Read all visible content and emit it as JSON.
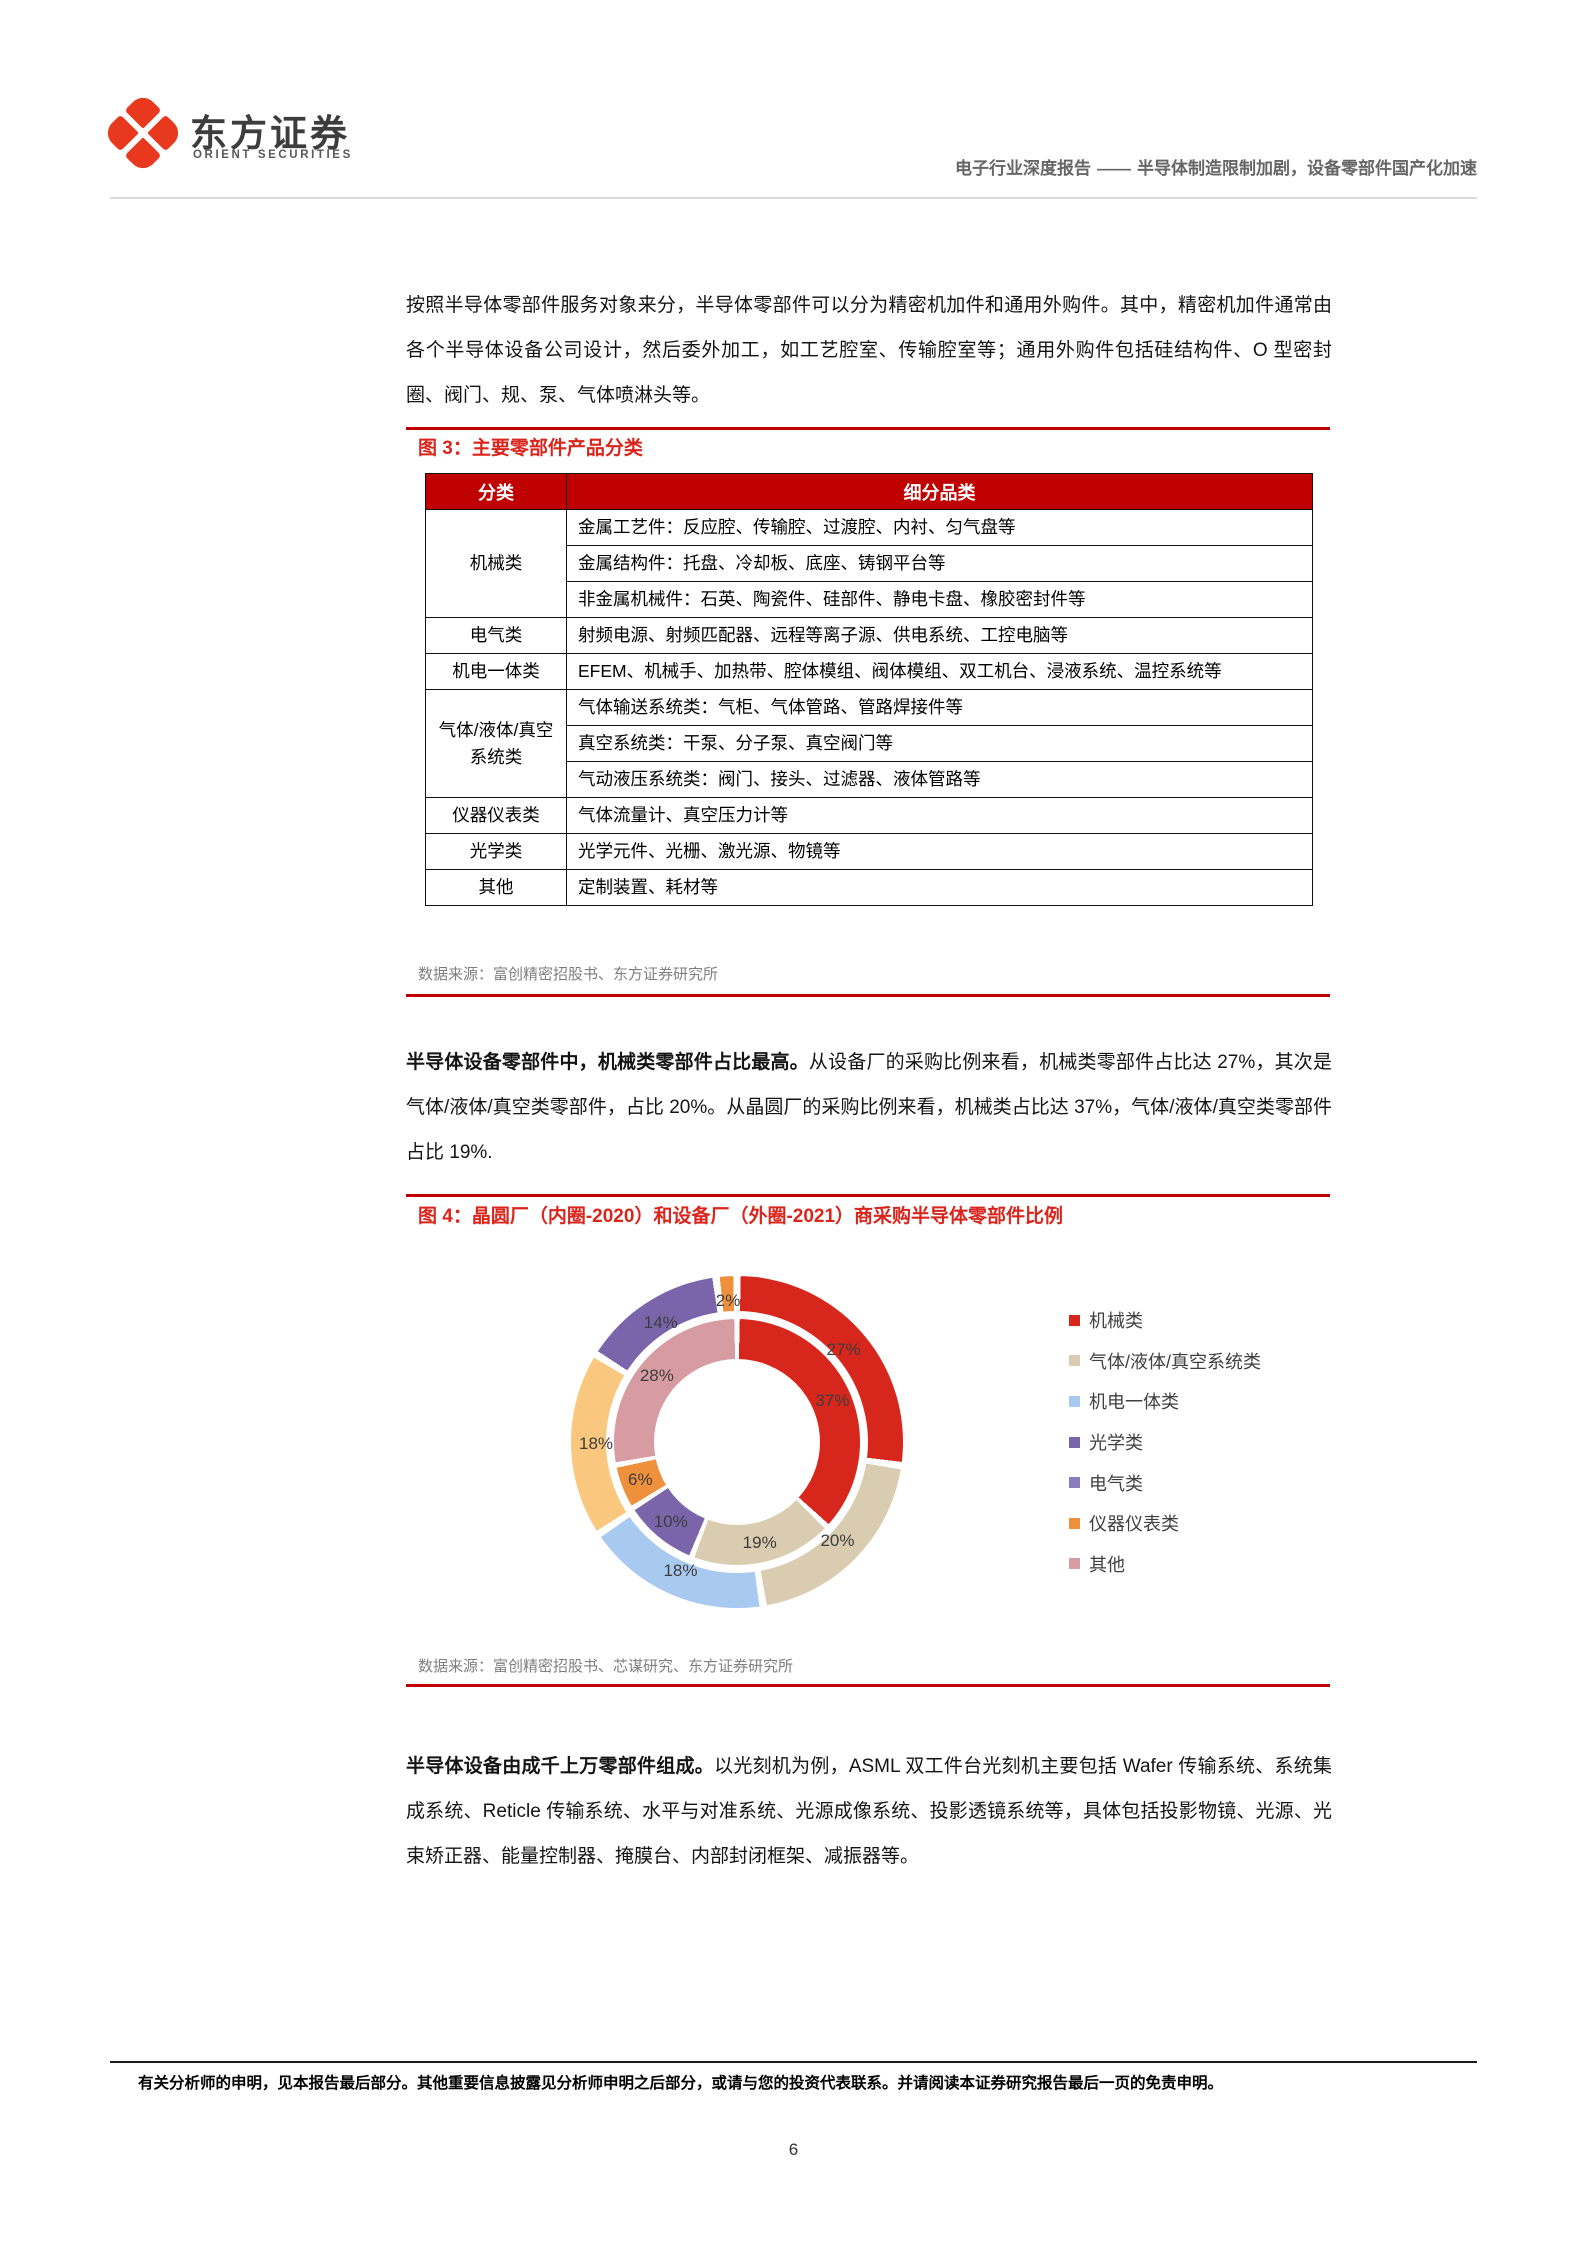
{
  "header": {
    "brand_cn": "东方证券",
    "brand_en": "ORIENT SECURITIES",
    "report_type": "电子行业深度报告",
    "dash": "——",
    "report_title": "半导体制造限制加剧，设备零部件国产化加速"
  },
  "paragraphs": {
    "p1": "按照半导体零部件服务对象来分，半导体零部件可以分为精密机加件和通用外购件。其中，精密机加件通常由各个半导体设备公司设计，然后委外加工，如工艺腔室、传输腔室等；通用外购件包括硅结构件、O 型密封圈、阀门、规、泵、气体喷淋头等。",
    "p2_bold": "半导体设备零部件中，机械类零部件占比最高。",
    "p2_rest": "从设备厂的采购比例来看，机械类零部件占比达 27%，其次是气体/液体/真空类零部件，占比 20%。从晶圆厂的采购比例来看，机械类占比达 37%，气体/液体/真空类零部件占比 19%.",
    "p3_bold": "半导体设备由成千上万零部件组成。",
    "p3_rest": "以光刻机为例，ASML 双工件台光刻机主要包括 Wafer 传输系统、系统集成系统、Reticle 传输系统、水平与对准系统、光源成像系统、投影透镜系统等，具体包括投影物镜、光源、光束矫正器、能量控制器、掩膜台、内部封闭框架、减振器等。"
  },
  "figure3": {
    "title": "图 3：主要零部件产品分类",
    "source": "数据来源：富创精密招股书、东方证券研究所",
    "table": {
      "headers": [
        "分类",
        "细分品类"
      ],
      "rows": [
        {
          "category": "机械类",
          "items": [
            "金属工艺件：反应腔、传输腔、过渡腔、内衬、匀气盘等",
            "金属结构件：托盘、冷却板、底座、铸钢平台等",
            "非金属机械件：石英、陶瓷件、硅部件、静电卡盘、橡胶密封件等"
          ]
        },
        {
          "category": "电气类",
          "items": [
            "射频电源、射频匹配器、远程等离子源、供电系统、工控电脑等"
          ]
        },
        {
          "category": "机电一体类",
          "items": [
            "EFEM、机械手、加热带、腔体模组、阀体模组、双工机台、浸液系统、温控系统等"
          ]
        },
        {
          "category": "气体/液体/真空系统类",
          "items": [
            "气体输送系统类：气柜、气体管路、管路焊接件等",
            "真空系统类：干泵、分子泵、真空阀门等",
            "气动液压系统类：阀门、接头、过滤器、液体管路等"
          ]
        },
        {
          "category": "仪器仪表类",
          "items": [
            "气体流量计、真空压力计等"
          ]
        },
        {
          "category": "光学类",
          "items": [
            "光学元件、光栅、激光源、物镜等"
          ]
        },
        {
          "category": "其他",
          "items": [
            "定制装置、耗材等"
          ]
        }
      ]
    }
  },
  "figure4": {
    "title": "图 4：晶圆厂（内圈-2020）和设备厂（外圈-2021）商采购半导体零部件比例",
    "source": "数据来源：富创精密招股书、芯谋研究、东方证券研究所"
  },
  "chart_data": {
    "type": "pie",
    "subtype": "double-ring-donut",
    "title": "晶圆厂（内圈-2020）和设备厂（外圈-2021）商采购半导体零部件比例",
    "legend_position": "right",
    "legend": [
      {
        "label": "机械类",
        "color": "#D7261C"
      },
      {
        "label": "气体/液体/真空系统类",
        "color": "#D9CCB1"
      },
      {
        "label": "机电一体类",
        "color": "#A8C9F0"
      },
      {
        "label": "光学类",
        "color": "#7B65AA"
      },
      {
        "label": "电气类",
        "color": "#8A7CBA"
      },
      {
        "label": "仪器仪表类",
        "color": "#EF913C"
      },
      {
        "label": "其他",
        "color": "#D79CA1"
      }
    ],
    "series": [
      {
        "name": "设备厂商采购比例（外圈-2021）",
        "ring": "outer",
        "slices": [
          {
            "label": "机械类",
            "value": 27,
            "display": "27%",
            "color": "#D7261C"
          },
          {
            "label": "气体/液体/真空系统类",
            "value": 20,
            "display": "20%",
            "color": "#D9CCB1"
          },
          {
            "label": "机电一体类",
            "value": 18,
            "display": "18%",
            "color": "#A8C9F0"
          },
          {
            "label": "光学类",
            "value": 18,
            "display": "18%",
            "color": "#F9C77D"
          },
          {
            "label": "电气类",
            "value": 14,
            "display": "14%",
            "color": "#7B65AA"
          },
          {
            "label": "仪器仪表类",
            "value": 2,
            "display": "2%",
            "color": "#EF913C"
          }
        ]
      },
      {
        "name": "晶圆厂商采购比例（内圈-2020）",
        "ring": "inner",
        "slices": [
          {
            "label": "机械类",
            "value": 37,
            "display": "37%",
            "color": "#D7261C"
          },
          {
            "label": "气体/液体/真空系统类",
            "value": 19,
            "display": "19%",
            "color": "#D9CCB1"
          },
          {
            "label": "电气类",
            "value": 10,
            "display": "10%",
            "color": "#7B65AA"
          },
          {
            "label": "仪器仪表类",
            "value": 6,
            "display": "6%",
            "color": "#EF913C"
          },
          {
            "label": "其他",
            "value": 28,
            "display": "28%",
            "color": "#D79CA1"
          }
        ]
      }
    ]
  },
  "footer": {
    "disclaimer": "有关分析师的申明，见本报告最后部分。其他重要信息披露见分析师申明之后部分，或请与您的投资代表联系。并请阅读本证券研究报告最后一页的免责申明。",
    "page_number": "6"
  }
}
